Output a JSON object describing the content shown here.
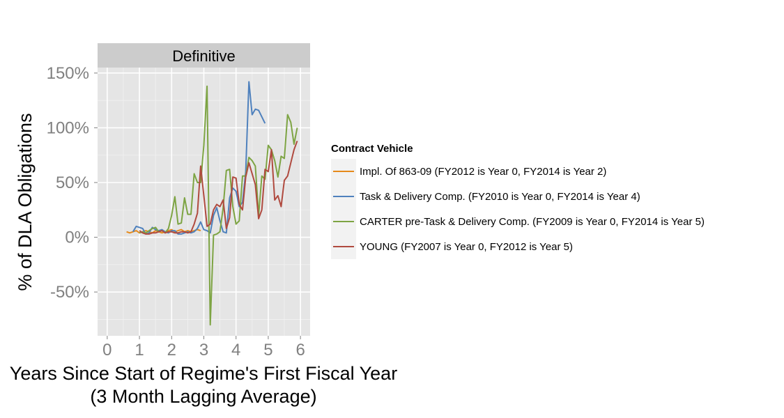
{
  "chart_data": {
    "type": "line",
    "facet": "Definitive",
    "xlabel": [
      "Years Since Start of Regime's First Fiscal Year",
      "(3 Month Lagging Average)"
    ],
    "ylabel": "% of DLA Obligations",
    "xlim": [
      -0.3,
      6.3
    ],
    "ylim": [
      -0.9,
      1.55
    ],
    "x_ticks": [
      0,
      1,
      2,
      3,
      4,
      5,
      6
    ],
    "x_tick_labels": [
      "0",
      "1",
      "2",
      "3",
      "4",
      "5",
      "6"
    ],
    "y_ticks": [
      -0.5,
      0,
      0.5,
      1,
      1.5
    ],
    "y_tick_labels": [
      "-50%",
      "0%",
      "50%",
      "100%",
      "150%"
    ],
    "grid": true,
    "legend_title": "Contract Vehicle",
    "legend_position": "right",
    "series": [
      {
        "name": "Impl. Of 863-09 (FY2012 is Year 0, FY2014 is Year 2)",
        "color": "#E68A1A",
        "x": [
          0.6,
          0.7,
          0.8,
          0.9,
          1.0,
          1.1,
          1.2,
          1.3,
          1.4,
          1.5,
          1.6,
          1.7,
          1.8,
          1.9,
          2.0,
          2.1,
          2.2,
          2.3,
          2.4,
          2.5,
          2.6,
          2.7,
          2.8,
          2.9
        ],
        "y": [
          0.05,
          0.04,
          0.05,
          0.06,
          0.04,
          0.05,
          0.06,
          0.05,
          0.04,
          0.06,
          0.05,
          0.04,
          0.05,
          0.06,
          0.07,
          0.05,
          0.06,
          0.07,
          0.05,
          0.06,
          0.05,
          0.06,
          0.07,
          0.06
        ]
      },
      {
        "name": "Task & Delivery Comp. (FY2010 is Year 0, FY2014 is Year 4)",
        "color": "#4F81BD",
        "x": [
          0.8,
          0.9,
          1.0,
          1.1,
          1.2,
          1.3,
          1.4,
          1.5,
          1.6,
          1.7,
          1.8,
          1.9,
          2.0,
          2.1,
          2.2,
          2.3,
          2.4,
          2.5,
          2.6,
          2.7,
          2.8,
          2.9,
          3.0,
          3.1,
          3.2,
          3.3,
          3.4,
          3.5,
          3.6,
          3.7,
          3.8,
          3.9,
          4.0,
          4.1,
          4.2,
          4.3,
          4.4,
          4.5,
          4.6,
          4.7,
          4.8,
          4.9
        ],
        "y": [
          0.05,
          0.1,
          0.09,
          0.08,
          0.03,
          0.04,
          0.09,
          0.07,
          0.06,
          0.07,
          0.05,
          0.04,
          0.06,
          0.06,
          0.03,
          0.03,
          0.04,
          0.05,
          0.04,
          0.05,
          0.08,
          0.14,
          0.07,
          0.06,
          0.04,
          0.2,
          0.27,
          0.15,
          0.05,
          0.04,
          0.36,
          0.45,
          0.42,
          0.28,
          0.32,
          0.6,
          1.42,
          1.12,
          1.17,
          1.16,
          1.1,
          1.04
        ]
      },
      {
        "name": "CARTER pre-Task & Delivery Comp. (FY2009 is Year 0, FY2014 is Year 5)",
        "color": "#7DA443",
        "x": [
          1.0,
          1.1,
          1.2,
          1.3,
          1.4,
          1.5,
          1.6,
          1.7,
          1.8,
          1.9,
          2.0,
          2.1,
          2.2,
          2.3,
          2.4,
          2.5,
          2.6,
          2.7,
          2.8,
          2.9,
          3.0,
          3.1,
          3.2,
          3.3,
          3.4,
          3.5,
          3.6,
          3.7,
          3.8,
          3.9,
          4.0,
          4.1,
          4.2,
          4.3,
          4.4,
          4.5,
          4.6,
          4.7,
          4.8,
          4.9,
          5.0,
          5.1,
          5.2,
          5.3,
          5.4,
          5.5,
          5.6,
          5.7,
          5.8,
          5.9
        ],
        "y": [
          0.04,
          0.05,
          0.04,
          0.06,
          0.08,
          0.09,
          0.05,
          0.06,
          0.04,
          0.08,
          0.2,
          0.37,
          0.12,
          0.13,
          0.36,
          0.21,
          0.21,
          0.58,
          0.5,
          0.5,
          0.84,
          1.38,
          -0.8,
          0.02,
          0.03,
          0.05,
          0.27,
          0.61,
          0.62,
          0.28,
          0.12,
          0.15,
          0.56,
          0.56,
          0.73,
          0.7,
          0.65,
          0.2,
          0.56,
          0.53,
          0.84,
          0.8,
          0.7,
          0.55,
          0.74,
          0.72,
          1.12,
          1.05,
          0.85,
          1.0
        ]
      },
      {
        "name": "YOUNG (FY2007 is Year 0, FY2012 is Year 5)",
        "color": "#B04A3F",
        "x": [
          1.0,
          1.1,
          1.2,
          1.3,
          1.4,
          1.5,
          1.6,
          1.7,
          1.8,
          1.9,
          2.0,
          2.1,
          2.2,
          2.3,
          2.4,
          2.5,
          2.6,
          2.7,
          2.8,
          2.9,
          3.0,
          3.1,
          3.2,
          3.3,
          3.4,
          3.5,
          3.6,
          3.7,
          3.8,
          3.9,
          4.0,
          4.1,
          4.2,
          4.3,
          4.4,
          4.5,
          4.6,
          4.7,
          4.8,
          4.9,
          5.0,
          5.1,
          5.2,
          5.3,
          5.4,
          5.5,
          5.6,
          5.7,
          5.8,
          5.9
        ],
        "y": [
          0.06,
          0.04,
          0.03,
          0.03,
          0.04,
          0.04,
          0.05,
          0.06,
          0.04,
          0.05,
          0.05,
          0.04,
          0.04,
          0.05,
          0.05,
          0.04,
          0.05,
          0.12,
          0.22,
          0.65,
          0.38,
          0.1,
          0.12,
          0.25,
          0.3,
          0.28,
          0.34,
          0.08,
          0.18,
          0.55,
          0.54,
          0.3,
          0.25,
          0.55,
          0.68,
          0.58,
          0.48,
          0.17,
          0.25,
          0.62,
          0.6,
          0.8,
          0.34,
          0.38,
          0.28,
          0.52,
          0.56,
          0.68,
          0.8,
          0.88
        ]
      }
    ]
  }
}
